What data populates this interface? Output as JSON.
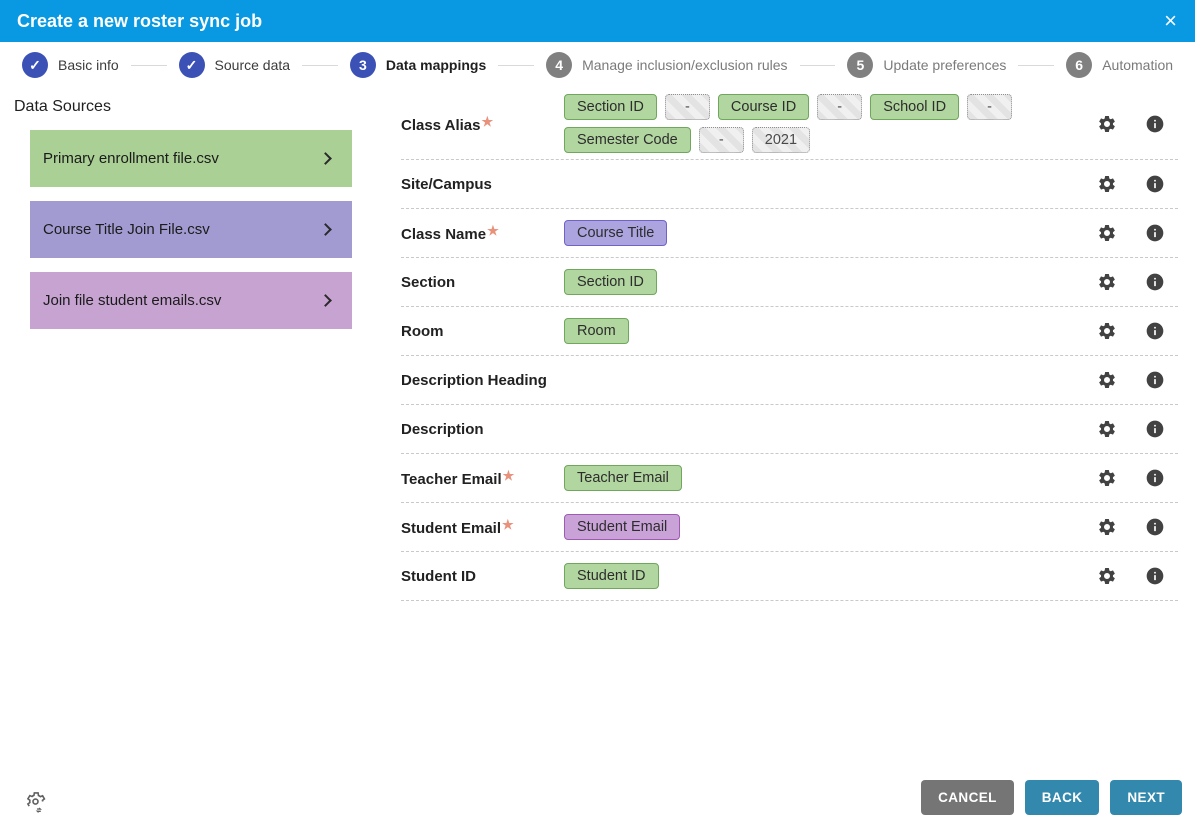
{
  "header": {
    "title": "Create a new roster sync job",
    "close_glyph": "×"
  },
  "stepper": {
    "steps": [
      {
        "label": "Basic info",
        "state": "done",
        "glyph": "check"
      },
      {
        "label": "Source data",
        "state": "done",
        "glyph": "check"
      },
      {
        "label": "Data mappings",
        "state": "active",
        "glyph": "3"
      },
      {
        "label": "Manage inclusion/exclusion rules",
        "state": "future",
        "glyph": "4"
      },
      {
        "label": "Update preferences",
        "state": "future",
        "glyph": "5"
      },
      {
        "label": "Automation",
        "state": "future",
        "glyph": "6"
      }
    ]
  },
  "data_sources": {
    "heading": "Data Sources",
    "items": [
      {
        "label": "Primary enrollment file.csv",
        "color": "#aad095"
      },
      {
        "label": "Course Title Join File.csv",
        "color": "#a19bd2"
      },
      {
        "label": "Join file student emails.csv",
        "color": "#c6a3d1"
      }
    ]
  },
  "mappings": {
    "rows": [
      {
        "label": "Class Alias",
        "required": true,
        "lines": [
          [
            {
              "text": "Section ID",
              "type": "green"
            },
            {
              "text": "-",
              "type": "dash"
            },
            {
              "text": "Course ID",
              "type": "green"
            },
            {
              "text": "-",
              "type": "dash"
            },
            {
              "text": "School ID",
              "type": "green"
            },
            {
              "text": "-",
              "type": "dash"
            }
          ],
          [
            {
              "text": "Semester Code",
              "type": "green"
            },
            {
              "text": "-",
              "type": "dash"
            },
            {
              "text": "2021",
              "type": "dash"
            }
          ]
        ]
      },
      {
        "label": "Site/Campus",
        "required": false,
        "lines": []
      },
      {
        "label": "Class Name",
        "required": true,
        "lines": [
          [
            {
              "text": "Course Title",
              "type": "purple"
            }
          ]
        ]
      },
      {
        "label": "Section",
        "required": false,
        "lines": [
          [
            {
              "text": "Section ID",
              "type": "green"
            }
          ]
        ]
      },
      {
        "label": "Room",
        "required": false,
        "lines": [
          [
            {
              "text": "Room",
              "type": "green"
            }
          ]
        ]
      },
      {
        "label": "Description Heading",
        "required": false,
        "lines": []
      },
      {
        "label": "Description",
        "required": false,
        "lines": []
      },
      {
        "label": "Teacher Email",
        "required": true,
        "lines": [
          [
            {
              "text": "Teacher Email",
              "type": "green"
            }
          ]
        ]
      },
      {
        "label": "Student Email",
        "required": true,
        "lines": [
          [
            {
              "text": "Student Email",
              "type": "pink"
            }
          ]
        ]
      },
      {
        "label": "Student ID",
        "required": false,
        "lines": [
          [
            {
              "text": "Student ID",
              "type": "green"
            }
          ]
        ]
      }
    ]
  },
  "footer": {
    "cancel": "CANCEL",
    "back": "BACK",
    "next": "NEXT"
  },
  "colors": {
    "header_bg": "#0998e2",
    "step_active": "#3b51b5",
    "step_future": "#808080",
    "chip_green_bg": "#b2d6a0",
    "chip_green_border": "#6fa75c",
    "chip_purple_bg": "#aba4df",
    "chip_purple_border": "#6f63c8",
    "chip_pink_bg": "#c9a3d8",
    "chip_pink_border": "#a05ab4",
    "button_gray": "#757575",
    "button_teal": "#3289ad",
    "required_star": "#e8927c"
  }
}
